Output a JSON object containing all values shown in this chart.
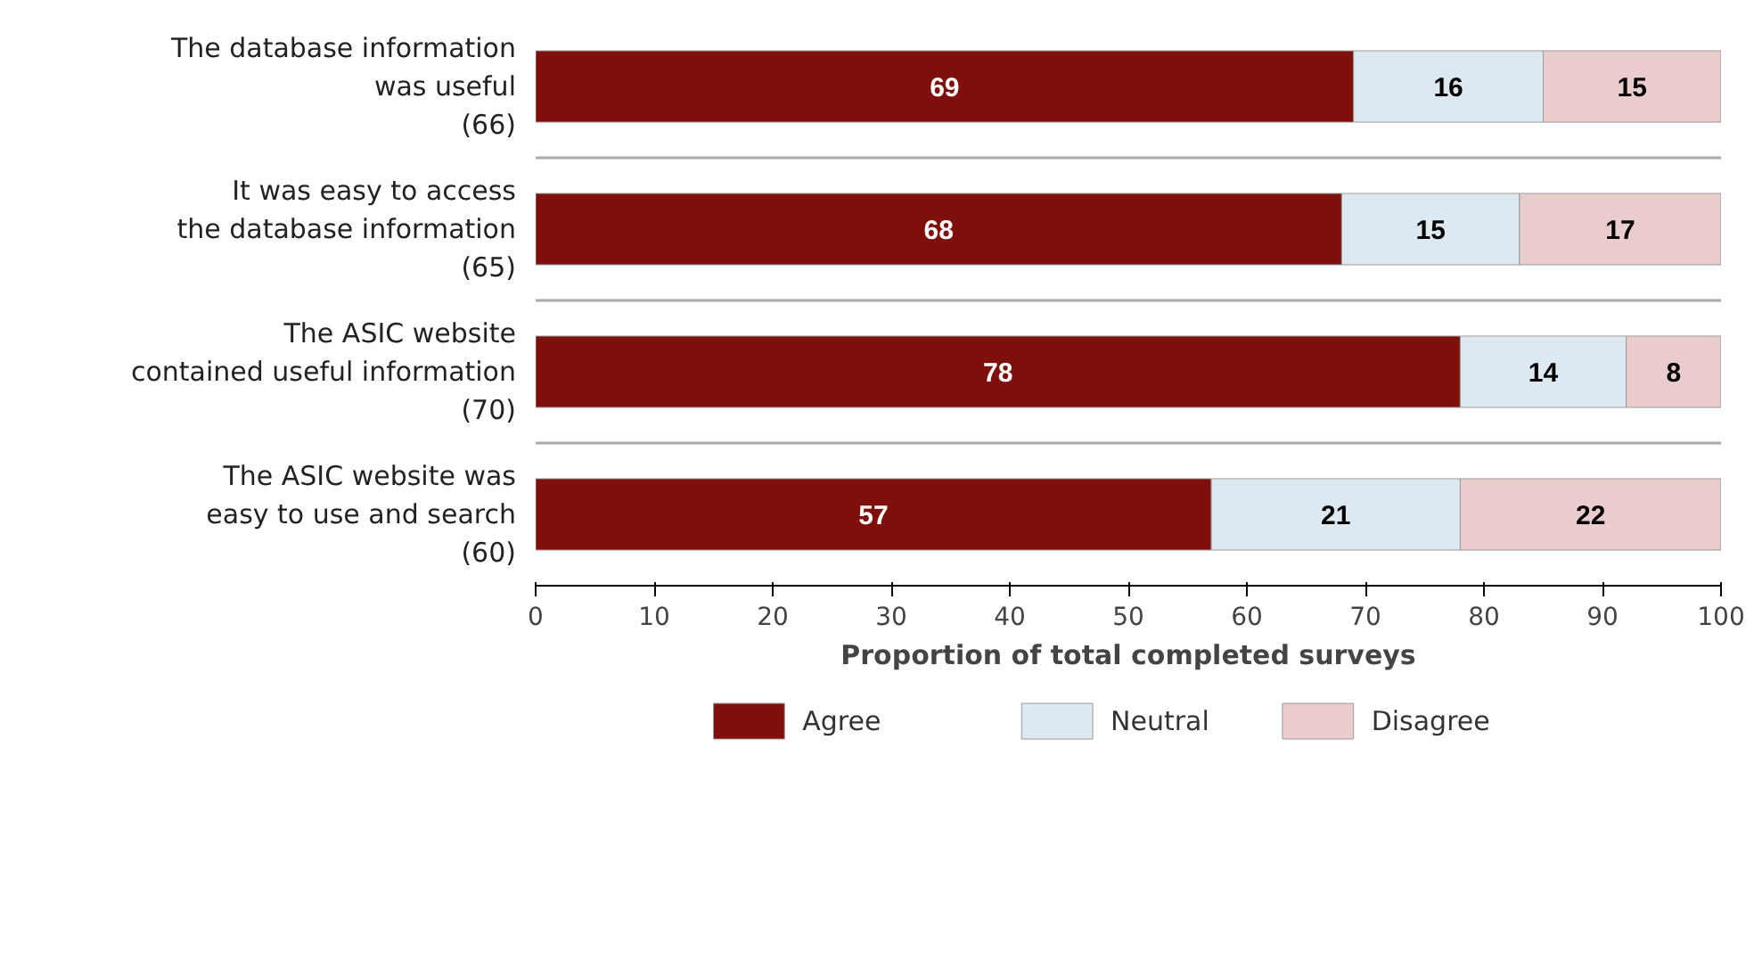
{
  "chart_data": {
    "type": "bar",
    "orientation": "horizontal",
    "stacked": true,
    "categories": [
      "The database information\nwas useful\n(66)",
      "It was easy to access\nthe database information\n(65)",
      "The ASIC website\ncontained useful information\n(70)",
      "The ASIC website was\neasy to use and search\n(60)"
    ],
    "series": [
      {
        "name": "Agree",
        "color": "#7f0f0a",
        "values": [
          69,
          68,
          78,
          57
        ]
      },
      {
        "name": "Neutral",
        "color": "#dde8f1",
        "values": [
          16,
          15,
          14,
          21
        ]
      },
      {
        "name": "Disagree",
        "color": "#ebcccc",
        "values": [
          15,
          17,
          8,
          22
        ]
      }
    ],
    "xlabel": "Proportion of total completed surveys",
    "xlim": [
      0,
      100
    ],
    "xticks": [
      0,
      10,
      20,
      30,
      40,
      50,
      60,
      70,
      80,
      90,
      100
    ],
    "data_labels": true,
    "grid": "y",
    "legend": "bottom"
  }
}
